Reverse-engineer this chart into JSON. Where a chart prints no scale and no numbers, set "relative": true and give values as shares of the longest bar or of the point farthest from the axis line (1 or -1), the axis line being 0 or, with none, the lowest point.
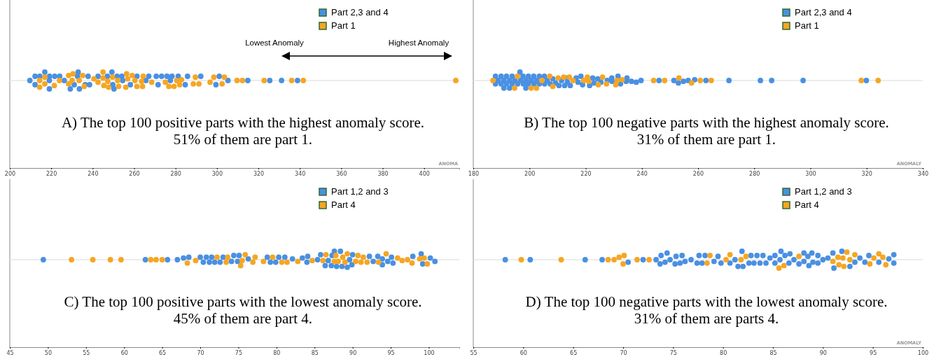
{
  "chart_data": [
    {
      "type": "scatter",
      "title": "A) The top 100 positive parts with the highest anomaly score.",
      "subtitle": "51% of them are part 1.",
      "xlabel": "ANOMA",
      "relative": true,
      "marker": "circle",
      "grid": false,
      "legend": "top right",
      "tick_labels": "x",
      "xlim": [
        200,
        417
      ],
      "xticks": [
        200,
        220,
        240,
        260,
        280,
        300,
        320,
        340,
        360,
        380,
        400
      ],
      "annotations": [
        "Lowest Anomaly",
        "Highest Anomaly"
      ],
      "series": [
        {
          "name": "Part 2,3 and 4",
          "color": "#4a90e2",
          "x": [
            209.7,
            212.2,
            212.2,
            214.5,
            216.9,
            219.2,
            219.1,
            219.1,
            221.7,
            224.1,
            226.3,
            229.2,
            231.1,
            233,
            232.7,
            233.6,
            236.4,
            237.8,
            238.5,
            242.6,
            247.1,
            249.3,
            249.7,
            250.3,
            251.8,
            254.1,
            254.5,
            258.2,
            261.4,
            265.7,
            267.1,
            270.7,
            271.6,
            273.3,
            275.9,
            278.3,
            277.5,
            281.3,
            284.7,
            285.8,
            292.2,
            299.5,
            301.1,
            305.3,
            314.9,
            325.5,
            331.2,
            338.9
          ],
          "values": [
            0,
            0.5,
            -0.5,
            0.5,
            1,
            0.5,
            0,
            -1,
            0.5,
            0.5,
            0,
            -1,
            -0.5,
            1,
            0.5,
            -1,
            -0.5,
            0.5,
            -0.5,
            0.5,
            0.5,
            1,
            -0.5,
            -1,
            0.5,
            0.5,
            0,
            -0.5,
            0.5,
            0,
            0.5,
            0.5,
            -0.5,
            0.5,
            0.5,
            0.5,
            0,
            0.5,
            -0.5,
            0.5,
            0.5,
            -0.5,
            0.5,
            0,
            0,
            0,
            0,
            0
          ]
        },
        {
          "name": "Part 1",
          "color": "#f5a623",
          "x": [
            214.4,
            214.4,
            216.9,
            216.9,
            221.5,
            224,
            228.4,
            228.4,
            230.5,
            230.1,
            233.5,
            235.2,
            235.9,
            240.6,
            242.6,
            245,
            245,
            245.4,
            247.3,
            247.7,
            249.6,
            252.1,
            252.5,
            256.4,
            256.9,
            256,
            259.1,
            260.4,
            261.4,
            263.6,
            264.4,
            264.1,
            268.5,
            275.1,
            276.8,
            279.3,
            280.6,
            282,
            282.9,
            288.6,
            289.6,
            291.3,
            296.7,
            298.5,
            302.5,
            303.6,
            309.7,
            312.3,
            322.8,
            336.1,
            341.7,
            415.3
          ],
          "values": [
            0,
            -0.8,
            0.4,
            -0.4,
            -0.6,
            0,
            0.6,
            -0.4,
            0.8,
            0,
            0,
            0.6,
            -0.7,
            0.2,
            -0.2,
            1,
            0.3,
            -0.6,
            -0.1,
            -0.8,
            0.4,
            0,
            -0.7,
            0.8,
            0.2,
            -0.8,
            0.6,
            0,
            -0.7,
            -0.1,
            0.5,
            -0.7,
            -0.2,
            -0.2,
            -0.7,
            -0.7,
            0,
            -0.5,
            0.1,
            -0.4,
            0.4,
            -0.4,
            -0.2,
            0.4,
            -0.4,
            0.4,
            0,
            0,
            0,
            0,
            0,
            0
          ]
        }
      ]
    },
    {
      "type": "scatter",
      "title": "B) The top 100 negative parts with the highest anomaly score.",
      "subtitle": "31% of them are part 1.",
      "xlabel": "ANOMALY",
      "relative": true,
      "marker": "circle",
      "grid": false,
      "legend": "top right",
      "tick_labels": "x",
      "xlim": [
        180,
        340
      ],
      "xticks": [
        180,
        200,
        220,
        240,
        260,
        280,
        300,
        320,
        340
      ],
      "series": [
        {
          "name": "Part 2,3 and 4",
          "color": "#4a90e2",
          "x": [
            187.9,
            187.9,
            188.9,
            189.9,
            189.9,
            190.9,
            190.9,
            191.8,
            191.8,
            192.9,
            192.9,
            193.8,
            193.8,
            194.8,
            195.8,
            196.6,
            196.8,
            197.7,
            197.8,
            198.7,
            198.7,
            199.6,
            199.6,
            200.6,
            201.5,
            201.6,
            202.5,
            203.5,
            203.5,
            205.3,
            205.4,
            206.3,
            207.4,
            208.3,
            209.3,
            210.5,
            211.4,
            212.5,
            213.3,
            213.5,
            214.5,
            216.6,
            217.3,
            218.3,
            218.9,
            221.4,
            222.5,
            223,
            224.3,
            225.4,
            227.7,
            229.3,
            229.4,
            231.5,
            232.4,
            234.4,
            234.7,
            236.3,
            238,
            239.7,
            246.1,
            251.4,
            253,
            254.8,
            256.5,
            258.8,
            262.8,
            271,
            282.2,
            286.2,
            297.4,
            319.9
          ],
          "values": [
            0.5,
            -0.4,
            0,
            0.5,
            -0.4,
            0,
            -0.9,
            0.5,
            -0.4,
            0,
            -0.9,
            0.5,
            -0.4,
            0,
            -0.4,
            1,
            0,
            0.5,
            -0.4,
            0,
            -0.9,
            0.5,
            -0.4,
            0,
            0.5,
            -0.4,
            0,
            0.5,
            -0.4,
            0.5,
            -0.4,
            0,
            -0.4,
            0.2,
            -0.3,
            -0.6,
            0,
            -0.6,
            0.3,
            -0.2,
            -0.6,
            0.3,
            -0.2,
            0.5,
            -0.5,
            -0.6,
            0.3,
            -0.3,
            0.2,
            -0.2,
            0,
            0.3,
            -0.1,
            0.5,
            -0.4,
            -0.1,
            0.3,
            -0.1,
            -0.2,
            0,
            0,
            0,
            -0.3,
            -0.1,
            0,
            0.1,
            0,
            0,
            0,
            0,
            0,
            0
          ]
        },
        {
          "name": "Part 1",
          "color": "#f5a623",
          "x": [
            187,
            194.7,
            195.7,
            200.6,
            202.5,
            204.4,
            207.2,
            208.3,
            210.2,
            212.2,
            214.2,
            215.5,
            219.3,
            220.6,
            221.1,
            224.5,
            226,
            227.4,
            230.7,
            231.2,
            233,
            244.2,
            248.1,
            253.2,
            257.7,
            260.8,
            264.7,
            318.1,
            324.1
          ],
          "values": [
            0,
            -0.9,
            0.5,
            -0.9,
            -0.9,
            0,
            0.5,
            -0.7,
            0.3,
            0.4,
            0.4,
            0,
            0,
            0.4,
            -0.1,
            -0.5,
            0.4,
            -0.4,
            -0.5,
            0,
            0.1,
            0,
            0,
            0.3,
            -0.3,
            0,
            0,
            0,
            0
          ]
        }
      ]
    },
    {
      "type": "scatter",
      "title": "C) The top 100 positive parts with the lowest anomaly score.",
      "subtitle": "45% of them are part 4.",
      "relative": true,
      "marker": "circle",
      "grid": false,
      "legend": "top right",
      "tick_labels": "x",
      "xlim": [
        45,
        104
      ],
      "xticks": [
        45,
        50,
        55,
        60,
        65,
        70,
        75,
        80,
        85,
        90,
        95,
        100
      ],
      "series": [
        {
          "name": "Part 1,2 and 3",
          "color": "#4a90e2",
          "x": [
            49.4,
            62.8,
            65.7,
            67,
            67.8,
            68.5,
            70,
            70.4,
            70.8,
            71.2,
            71.5,
            71.9,
            72.6,
            73,
            74.1,
            74.4,
            74.9,
            75.1,
            76.3,
            78.8,
            79.2,
            79.9,
            80.3,
            81.1,
            82.1,
            83.4,
            84,
            84.1,
            85.4,
            85.8,
            86.4,
            86.8,
            87.2,
            87.3,
            87.6,
            87.9,
            88.4,
            88.6,
            89.3,
            89.6,
            89.9,
            90,
            92.2,
            92.7,
            93.3,
            93.9,
            93.9,
            94.6,
            95.1,
            95.3,
            97.9,
            99,
            99.2,
            100.2,
            100.8
          ],
          "values": [
            0,
            0,
            0,
            0,
            0.2,
            0.3,
            0.3,
            -0.3,
            0.3,
            -0.3,
            0.3,
            -0.3,
            -0.3,
            0.3,
            -0.2,
            0.5,
            -0.2,
            0.5,
            0.1,
            0.3,
            -0.3,
            -0.3,
            0.3,
            0.3,
            0.1,
            0.2,
            -0.3,
            0.4,
            0,
            0.6,
            -0.7,
            -0.1,
            -0.7,
            0.5,
            1,
            -0.8,
            1,
            -0.8,
            -0.9,
            0,
            -0.6,
            0.6,
            0.4,
            -0.2,
            0.4,
            0.1,
            -0.6,
            -0.2,
            0.3,
            -0.4,
            0.4,
            0.7,
            -0.5,
            0.2,
            -0.2
          ]
        },
        {
          "name": "Part 4",
          "color": "#f5a623",
          "x": [
            53.1,
            55.9,
            58.2,
            59.6,
            63.5,
            64.2,
            65,
            68.3,
            69.4,
            72.2,
            73.4,
            73.6,
            75.3,
            75.5,
            75.9,
            76.9,
            77.2,
            78.3,
            79.5,
            80.7,
            81.4,
            82.8,
            84.7,
            86.1,
            86.5,
            87.6,
            87.8,
            88.1,
            88.7,
            89,
            89.3,
            90.4,
            90.7,
            91.1,
            91.4,
            91.9,
            93.4,
            94.4,
            95.9,
            96.5,
            97.2,
            97.8,
            98.8,
            99.4,
            99.8
          ],
          "values": [
            0,
            0,
            0,
            0,
            0,
            0,
            0,
            -0.4,
            -0.1,
            0.3,
            -0.3,
            0.3,
            -0.7,
            -0.1,
            0.6,
            -0.3,
            0.3,
            -0.2,
            0.3,
            -0.3,
            -0.3,
            -0.2,
            -0.1,
            -0.1,
            0.6,
            -0.2,
            0.5,
            -0.2,
            0.3,
            -0.3,
            0.7,
            -0.2,
            0.5,
            -0.3,
            0.3,
            -0.3,
            -0.3,
            0.7,
            0.2,
            -0.1,
            0,
            -0.4,
            0.1,
            0.2,
            -0.5
          ]
        }
      ]
    },
    {
      "type": "scatter",
      "title": "D) The top 100 negative parts with the lowest anomaly score.",
      "subtitle": "31% of them are parts 4.",
      "xlabel": "ANOMALY",
      "relative": true,
      "marker": "circle",
      "grid": false,
      "legend": "top right",
      "tick_labels": "x",
      "xlim": [
        55,
        100
      ],
      "xticks": [
        55,
        60,
        65,
        70,
        75,
        80,
        85,
        90,
        95,
        100
      ],
      "series": [
        {
          "name": "Part 1,2 and 3",
          "color": "#4a90e2",
          "x": [
            58.2,
            60.7,
            66.2,
            67.9,
            70.5,
            72,
            73.3,
            73.7,
            73.8,
            74.2,
            74.4,
            74.7,
            75.2,
            75.3,
            75.7,
            75.9,
            76.2,
            76.8,
            77.4,
            77.6,
            77.9,
            78.2,
            79.1,
            79.5,
            79.8,
            80.7,
            81.2,
            81.5,
            81.9,
            82,
            82.6,
            82.8,
            83.1,
            83.4,
            83.7,
            84,
            84.3,
            84.7,
            85.2,
            85.2,
            85.7,
            85.8,
            86.2,
            86.6,
            86.7,
            87.1,
            87.6,
            88.1,
            88.1,
            88.6,
            88.5,
            88.9,
            89,
            89.5,
            89.5,
            90,
            90.5,
            91,
            91.1,
            91.9,
            92.7,
            93.2,
            93.7,
            94.2,
            94.6,
            95.6,
            96.6,
            97.1,
            97.1
          ],
          "values": [
            0,
            0,
            0,
            0,
            -0.3,
            0,
            0,
            -0.5,
            0.5,
            -0.3,
            0.8,
            0,
            -0.5,
            0.4,
            -0.4,
            0.5,
            -0.2,
            0,
            -0.4,
            0.5,
            -0.4,
            0.5,
            -0.2,
            0.4,
            -0.4,
            -0.4,
            0,
            -0.8,
            1,
            -0.8,
            -0.4,
            0.5,
            -0.4,
            0.5,
            -0.4,
            0.5,
            -0.4,
            0.2,
            -0.4,
            0.5,
            0,
            1,
            0.5,
            -0.4,
            0.7,
            0,
            -0.5,
            0.8,
            -0.2,
            -0.7,
            0.4,
            0.8,
            -0.3,
            0.5,
            -0.4,
            0,
            0.2,
            0.8,
            -1,
            1,
            -0.8,
            -0.3,
            0.2,
            -0.3,
            0.5,
            -0.3,
            0.1,
            0.6,
            -0.4
          ]
        },
        {
          "name": "Part 4",
          "color": "#f5a623",
          "x": [
            59.8,
            63.8,
            68.5,
            69.1,
            69.6,
            70,
            70.1,
            71.4,
            72.6,
            78.4,
            78.7,
            80.3,
            80.7,
            81.8,
            82.3,
            85.6,
            86.1,
            87.6,
            91,
            91.5,
            91.6,
            92,
            92.1,
            92.4,
            92.7,
            93.2,
            94.7,
            95.1,
            95.6,
            96,
            96.3
          ],
          "values": [
            0,
            0,
            0,
            0,
            0.3,
            -0.5,
            0.5,
            0,
            0,
            -0.4,
            0.5,
            0,
            0.6,
            0,
            0.4,
            -1,
            -0.7,
            0.4,
            -0.2,
            0.3,
            -0.6,
            0.2,
            -0.8,
            0.9,
            0,
            0.6,
            -0.5,
            0.2,
            0.7,
            0.3,
            -0.6
          ]
        }
      ]
    }
  ]
}
